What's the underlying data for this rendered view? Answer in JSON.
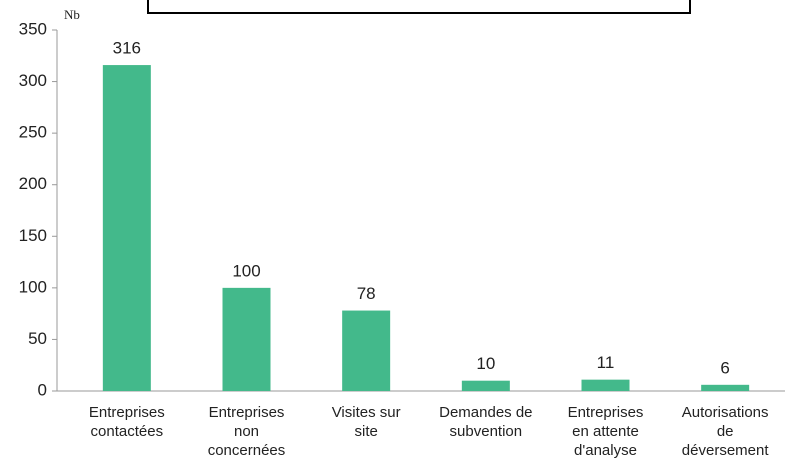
{
  "chart_data": {
    "type": "bar",
    "y_label": "Nb",
    "categories": [
      [
        "Entreprises",
        "contactées"
      ],
      [
        "Entreprises",
        "non",
        "concernées"
      ],
      [
        "Visites sur",
        "site"
      ],
      [
        "Demandes de",
        "subvention"
      ],
      [
        "Entreprises",
        "en attente",
        "d'analyse"
      ],
      [
        "Autorisations",
        "de",
        "déversement"
      ]
    ],
    "values": [
      316,
      100,
      78,
      10,
      11,
      6
    ],
    "color": "#43b98b",
    "ylim": [
      0,
      350
    ],
    "yticks": [
      0,
      50,
      100,
      150,
      200,
      250,
      300,
      350
    ]
  }
}
